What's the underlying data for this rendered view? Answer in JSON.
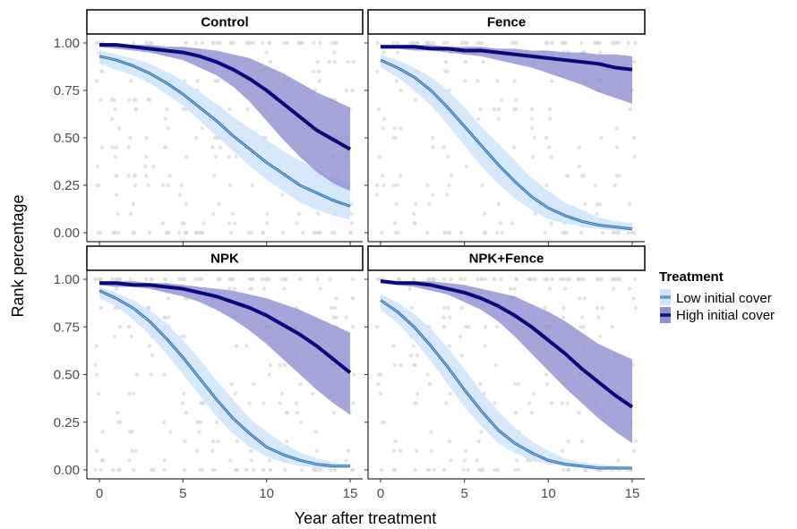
{
  "chart_data": {
    "type": "line",
    "xlabel": "Year after treatment",
    "ylabel": "Rank percentage",
    "xlim": [
      0,
      15
    ],
    "ylim": [
      0,
      1
    ],
    "x_ticks": [
      "0",
      "5",
      "10",
      "15"
    ],
    "y_ticks": [
      "0.00",
      "0.25",
      "0.50",
      "0.75",
      "1.00"
    ],
    "grid": false,
    "legend": {
      "title": "Treatment",
      "placement": "right",
      "entries": [
        "Low initial cover",
        "High initial cover"
      ]
    },
    "colors": {
      "low_line": "#2f6fa8",
      "low_inner": "#8fc0e8",
      "low_band": "#cfe4fb",
      "high_line": "#0a0a7a",
      "high_band": "#8f8fd0",
      "points": "#d9d9d9"
    },
    "x": [
      0,
      1,
      2,
      3,
      4,
      5,
      6,
      7,
      8,
      9,
      10,
      11,
      12,
      13,
      14,
      15
    ],
    "panels": [
      {
        "name": "Control",
        "series": [
          {
            "name": "Low initial cover",
            "values": [
              0.93,
              0.91,
              0.88,
              0.84,
              0.79,
              0.73,
              0.66,
              0.59,
              0.51,
              0.44,
              0.37,
              0.31,
              0.25,
              0.21,
              0.17,
              0.14
            ],
            "lower": [
              0.89,
              0.86,
              0.83,
              0.79,
              0.73,
              0.67,
              0.59,
              0.51,
              0.43,
              0.35,
              0.28,
              0.22,
              0.16,
              0.12,
              0.09,
              0.07
            ],
            "upper": [
              0.96,
              0.94,
              0.92,
              0.89,
              0.85,
              0.8,
              0.74,
              0.68,
              0.61,
              0.55,
              0.49,
              0.43,
              0.38,
              0.33,
              0.29,
              0.26
            ]
          },
          {
            "name": "High initial cover",
            "values": [
              0.99,
              0.99,
              0.98,
              0.97,
              0.96,
              0.95,
              0.93,
              0.9,
              0.86,
              0.81,
              0.75,
              0.68,
              0.61,
              0.54,
              0.49,
              0.44
            ],
            "lower": [
              0.98,
              0.97,
              0.96,
              0.95,
              0.93,
              0.91,
              0.87,
              0.83,
              0.77,
              0.69,
              0.59,
              0.49,
              0.4,
              0.32,
              0.26,
              0.22
            ],
            "upper": [
              1.0,
              1.0,
              0.99,
              0.99,
              0.98,
              0.98,
              0.97,
              0.96,
              0.94,
              0.92,
              0.88,
              0.84,
              0.79,
              0.74,
              0.7,
              0.66
            ]
          }
        ]
      },
      {
        "name": "Fence",
        "series": [
          {
            "name": "Low initial cover",
            "values": [
              0.91,
              0.87,
              0.82,
              0.75,
              0.66,
              0.56,
              0.46,
              0.36,
              0.27,
              0.19,
              0.13,
              0.09,
              0.06,
              0.04,
              0.03,
              0.02
            ],
            "lower": [
              0.87,
              0.82,
              0.75,
              0.67,
              0.57,
              0.46,
              0.35,
              0.26,
              0.18,
              0.12,
              0.07,
              0.05,
              0.03,
              0.02,
              0.01,
              0.01
            ],
            "upper": [
              0.94,
              0.91,
              0.87,
              0.82,
              0.75,
              0.66,
              0.56,
              0.47,
              0.38,
              0.29,
              0.22,
              0.16,
              0.12,
              0.08,
              0.06,
              0.05
            ]
          },
          {
            "name": "High initial cover",
            "values": [
              0.98,
              0.98,
              0.98,
              0.97,
              0.97,
              0.96,
              0.96,
              0.95,
              0.94,
              0.93,
              0.92,
              0.91,
              0.9,
              0.89,
              0.87,
              0.86
            ],
            "lower": [
              0.97,
              0.97,
              0.96,
              0.96,
              0.95,
              0.94,
              0.93,
              0.91,
              0.89,
              0.87,
              0.84,
              0.81,
              0.78,
              0.74,
              0.71,
              0.68
            ],
            "upper": [
              0.99,
              0.99,
              0.99,
              0.99,
              0.98,
              0.98,
              0.98,
              0.97,
              0.97,
              0.96,
              0.96,
              0.95,
              0.95,
              0.94,
              0.94,
              0.93
            ]
          }
        ]
      },
      {
        "name": "NPK",
        "series": [
          {
            "name": "Low initial cover",
            "values": [
              0.94,
              0.9,
              0.85,
              0.78,
              0.69,
              0.59,
              0.48,
              0.37,
              0.27,
              0.19,
              0.12,
              0.08,
              0.05,
              0.03,
              0.02,
              0.02
            ],
            "lower": [
              0.9,
              0.86,
              0.79,
              0.71,
              0.61,
              0.5,
              0.39,
              0.28,
              0.19,
              0.12,
              0.07,
              0.04,
              0.02,
              0.01,
              0.01,
              0.01
            ],
            "upper": [
              0.96,
              0.93,
              0.89,
              0.84,
              0.77,
              0.68,
              0.58,
              0.47,
              0.37,
              0.27,
              0.2,
              0.14,
              0.09,
              0.06,
              0.04,
              0.03
            ]
          },
          {
            "name": "High initial cover",
            "values": [
              0.98,
              0.98,
              0.97,
              0.97,
              0.96,
              0.95,
              0.93,
              0.91,
              0.88,
              0.85,
              0.81,
              0.76,
              0.71,
              0.65,
              0.58,
              0.51
            ],
            "lower": [
              0.97,
              0.96,
              0.96,
              0.95,
              0.93,
              0.91,
              0.88,
              0.84,
              0.79,
              0.73,
              0.66,
              0.58,
              0.5,
              0.42,
              0.35,
              0.29
            ],
            "upper": [
              0.99,
              0.99,
              0.99,
              0.98,
              0.98,
              0.97,
              0.96,
              0.95,
              0.94,
              0.92,
              0.9,
              0.87,
              0.84,
              0.8,
              0.76,
              0.72
            ]
          }
        ]
      },
      {
        "name": "NPK+Fence",
        "series": [
          {
            "name": "Low initial cover",
            "values": [
              0.89,
              0.83,
              0.75,
              0.65,
              0.54,
              0.42,
              0.31,
              0.21,
              0.14,
              0.09,
              0.05,
              0.03,
              0.02,
              0.01,
              0.01,
              0.01
            ],
            "lower": [
              0.84,
              0.77,
              0.68,
              0.57,
              0.45,
              0.33,
              0.23,
              0.14,
              0.09,
              0.05,
              0.03,
              0.02,
              0.01,
              0.0,
              0.0,
              0.0
            ],
            "upper": [
              0.92,
              0.88,
              0.82,
              0.74,
              0.64,
              0.53,
              0.41,
              0.31,
              0.22,
              0.15,
              0.1,
              0.06,
              0.04,
              0.03,
              0.02,
              0.01
            ]
          },
          {
            "name": "High initial cover",
            "values": [
              0.99,
              0.98,
              0.98,
              0.97,
              0.95,
              0.93,
              0.9,
              0.86,
              0.81,
              0.75,
              0.68,
              0.61,
              0.53,
              0.46,
              0.39,
              0.33
            ],
            "lower": [
              0.98,
              0.97,
              0.96,
              0.94,
              0.92,
              0.88,
              0.84,
              0.78,
              0.7,
              0.61,
              0.52,
              0.43,
              0.35,
              0.27,
              0.2,
              0.14
            ],
            "upper": [
              1.0,
              0.99,
              0.99,
              0.99,
              0.98,
              0.97,
              0.95,
              0.93,
              0.91,
              0.87,
              0.83,
              0.78,
              0.72,
              0.66,
              0.62,
              0.58
            ]
          }
        ]
      }
    ]
  }
}
